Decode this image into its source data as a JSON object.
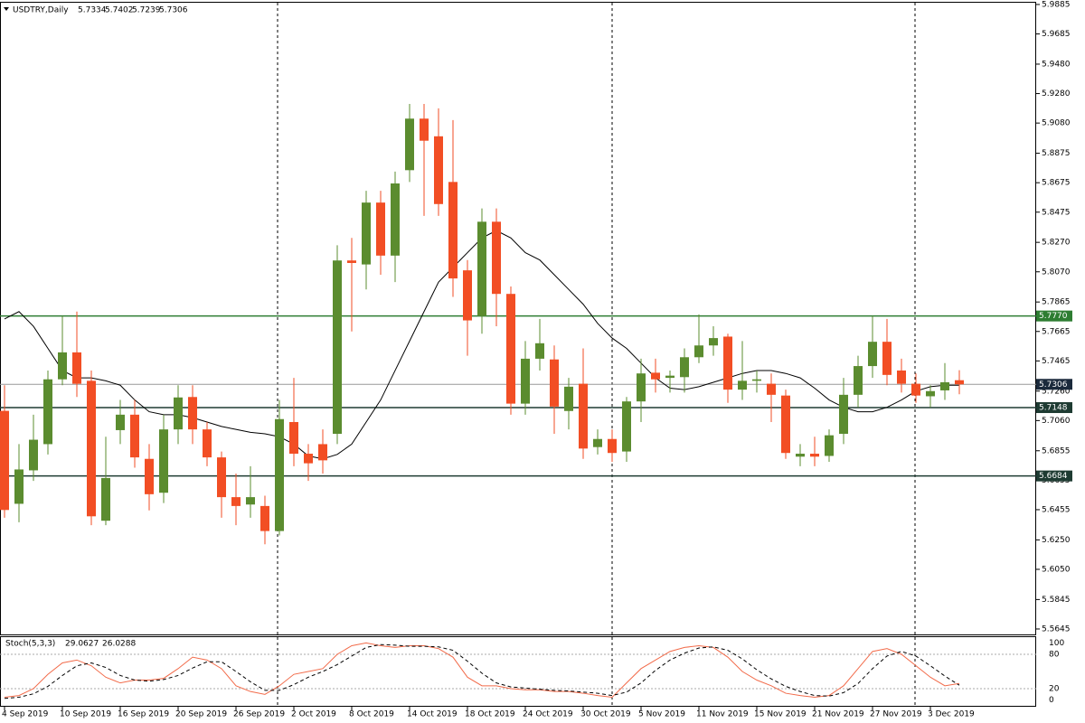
{
  "chart_data": {
    "type": "candlestick",
    "title": "USDTRY,Daily",
    "categories": [
      "4 Sep 2019",
      null,
      null,
      null,
      "10 Sep 2019",
      null,
      null,
      null,
      "16 Sep 2019",
      null,
      null,
      null,
      "20 Sep 2019",
      null,
      null,
      null,
      "26 Sep 2019",
      null,
      null,
      null,
      "2 Oct 2019",
      null,
      null,
      null,
      "8 Oct 2019",
      null,
      null,
      null,
      "14 Oct 2019",
      null,
      null,
      null,
      "18 Oct 2019",
      null,
      null,
      null,
      "24 Oct 2019",
      null,
      null,
      null,
      "30 Oct 2019",
      null,
      null,
      null,
      "5 Nov 2019",
      null,
      null,
      null,
      "11 Nov 2019",
      null,
      null,
      null,
      "15 Nov 2019",
      null,
      null,
      null,
      "21 Nov 2019",
      null,
      null,
      null,
      "27 Nov 2019",
      null,
      null,
      null,
      "3 Dec 2019",
      null,
      null
    ],
    "open": [
      5.7126,
      5.6495,
      5.6722,
      5.69,
      5.734,
      5.7523,
      5.733,
      5.638,
      5.6995,
      5.71,
      5.68,
      5.657,
      5.7,
      5.722,
      5.7,
      5.681,
      5.654,
      5.649,
      5.648,
      5.631,
      5.705,
      5.6835,
      5.69,
      5.697,
      5.8147,
      5.812,
      5.854,
      5.818,
      5.876,
      5.911,
      5.899,
      5.868,
      5.808,
      5.777,
      5.841,
      5.792,
      5.7175,
      5.748,
      5.7475,
      5.7125,
      5.731,
      5.688,
      5.6935,
      5.685,
      5.719,
      5.7385,
      5.735,
      5.7355,
      5.749,
      5.757,
      5.763,
      5.727,
      5.733,
      5.731,
      5.723,
      5.6815,
      5.6835,
      5.682,
      5.697,
      5.7235,
      5.743,
      5.7595,
      5.74,
      5.731,
      5.7225,
      5.7265,
      5.7334
    ],
    "high": [
      5.73,
      5.69,
      5.71,
      5.74,
      5.777,
      5.78,
      5.74,
      5.695,
      5.72,
      5.72,
      5.69,
      5.71,
      5.73,
      5.73,
      5.705,
      5.685,
      5.67,
      5.675,
      5.655,
      5.72,
      5.735,
      5.69,
      5.7,
      5.825,
      5.83,
      5.862,
      5.862,
      5.875,
      5.921,
      5.921,
      5.918,
      5.91,
      5.815,
      5.85,
      5.85,
      5.797,
      5.76,
      5.775,
      5.757,
      5.735,
      5.755,
      5.7,
      5.7,
      5.722,
      5.748,
      5.748,
      5.74,
      5.755,
      5.778,
      5.77,
      5.765,
      5.76,
      5.74,
      5.738,
      5.727,
      5.69,
      5.695,
      5.7,
      5.735,
      5.75,
      5.777,
      5.775,
      5.748,
      5.738,
      5.73,
      5.745,
      5.7402
    ],
    "low": [
      5.64,
      5.637,
      5.665,
      5.683,
      5.73,
      5.722,
      5.635,
      5.635,
      5.69,
      5.674,
      5.645,
      5.65,
      5.69,
      5.69,
      5.675,
      5.64,
      5.635,
      5.64,
      5.622,
      5.628,
      5.675,
      5.665,
      5.67,
      5.69,
      5.7665,
      5.795,
      5.805,
      5.8,
      5.868,
      5.845,
      5.845,
      5.79,
      5.75,
      5.765,
      5.77,
      5.71,
      5.71,
      5.74,
      5.697,
      5.7,
      5.68,
      5.683,
      5.678,
      5.678,
      5.705,
      5.725,
      5.725,
      5.725,
      5.745,
      5.75,
      5.718,
      5.72,
      5.725,
      5.705,
      5.68,
      5.675,
      5.675,
      5.678,
      5.69,
      5.715,
      5.735,
      5.73,
      5.725,
      5.718,
      5.715,
      5.72,
      5.7239
    ],
    "close": [
      5.6453,
      5.6728,
      5.693,
      5.734,
      5.7523,
      5.731,
      5.641,
      5.667,
      5.71,
      5.681,
      5.656,
      5.7,
      5.7217,
      5.7,
      5.681,
      5.654,
      5.648,
      5.654,
      5.631,
      5.707,
      5.6835,
      5.677,
      5.679,
      5.8147,
      5.813,
      5.854,
      5.818,
      5.867,
      5.911,
      5.896,
      5.853,
      5.8025,
      5.774,
      5.841,
      5.792,
      5.7175,
      5.748,
      5.7585,
      5.7155,
      5.729,
      5.687,
      5.6935,
      5.684,
      5.719,
      5.738,
      5.734,
      5.7365,
      5.749,
      5.757,
      5.762,
      5.727,
      5.733,
      5.734,
      5.7235,
      5.684,
      5.6835,
      5.6815,
      5.696,
      5.7235,
      5.743,
      5.7595,
      5.737,
      5.731,
      5.723,
      5.726,
      5.732,
      5.7306
    ],
    "up_color": "#5b8c2f",
    "down_color": "#f24e24",
    "series": [
      {
        "color": "#000000",
        "values": [
          5.775,
          5.78,
          5.77,
          5.755,
          5.74,
          5.735,
          5.735,
          5.733,
          5.73,
          5.72,
          5.712,
          5.71,
          5.71,
          5.708,
          5.705,
          5.702,
          5.7,
          5.698,
          5.697,
          5.695,
          5.69,
          5.682,
          5.68,
          5.683,
          5.69,
          5.705,
          5.72,
          5.74,
          5.76,
          5.78,
          5.8,
          5.81,
          5.82,
          5.83,
          5.835,
          5.83,
          5.82,
          5.815,
          5.805,
          5.795,
          5.785,
          5.772,
          5.762,
          5.755,
          5.745,
          5.735,
          5.728,
          5.727,
          5.729,
          5.732,
          5.735,
          5.738,
          5.74,
          5.74,
          5.738,
          5.735,
          5.728,
          5.72,
          5.715,
          5.712,
          5.712,
          5.715,
          5.72,
          5.726,
          5.729,
          5.73,
          5.73
        ]
      }
    ],
    "levels": [
      {
        "value": 5.777,
        "label": "5.7770",
        "color": "#2e7d32"
      },
      {
        "value": 5.7148,
        "label": "5.7148",
        "color": "#1e3b32"
      },
      {
        "value": 5.6684,
        "label": "5.6684",
        "color": "#1e3b32"
      }
    ],
    "current_color": "#1b2a3c",
    "ylim": [
      5.5608,
      5.9897
    ],
    "yticks": [
      5.9885,
      5.9685,
      {
        "value": 5.948,
        "label": "5.9480"
      },
      {
        "value": 5.928,
        "label": "5.9280"
      },
      {
        "value": 5.908,
        "label": "5.9080"
      },
      5.8875,
      5.8675,
      5.8475,
      {
        "value": 5.827,
        "label": "5.8270"
      },
      {
        "value": 5.807,
        "label": "5.8070"
      },
      5.7865,
      5.7665,
      5.7465,
      {
        "value": 5.726,
        "label": "5.7260"
      },
      {
        "value": 5.706,
        "label": "5.7060"
      },
      5.6855,
      5.6655,
      5.6455,
      {
        "value": 5.625,
        "label": "5.6250"
      },
      {
        "value": 5.605,
        "label": "5.6050"
      },
      5.5845,
      5.5645
    ],
    "indicator": {
      "title": "Stoch(5,3,3)",
      "main_color": "#f26b4a",
      "signal_color": "#000000",
      "main": [
        5,
        8,
        20,
        45,
        65,
        70,
        60,
        40,
        30,
        35,
        35,
        38,
        55,
        75,
        70,
        55,
        25,
        15,
        10,
        25,
        45,
        50,
        55,
        80,
        95,
        100,
        95,
        92,
        95,
        95,
        90,
        75,
        40,
        25,
        25,
        20,
        18,
        18,
        15,
        15,
        12,
        8,
        5,
        30,
        55,
        70,
        85,
        92,
        95,
        92,
        75,
        50,
        35,
        25,
        12,
        8,
        5,
        8,
        25,
        55,
        85,
        90,
        80,
        60,
        40,
        25,
        29.0627
      ],
      "signal": [
        3,
        5,
        11,
        24,
        43,
        60,
        65,
        57,
        43,
        35,
        33,
        36,
        43,
        56,
        67,
        67,
        50,
        32,
        17,
        17,
        27,
        40,
        50,
        62,
        77,
        92,
        97,
        96,
        94,
        94,
        93,
        87,
        68,
        47,
        30,
        23,
        21,
        19,
        17,
        16,
        14,
        12,
        8,
        14,
        30,
        52,
        70,
        82,
        91,
        93,
        87,
        72,
        53,
        37,
        24,
        15,
        8,
        7,
        13,
        29,
        55,
        77,
        85,
        77,
        60,
        42,
        26.0288
      ],
      "ylim": [
        -10,
        110
      ],
      "yticks": [
        0,
        20,
        80,
        100
      ]
    }
  }
}
